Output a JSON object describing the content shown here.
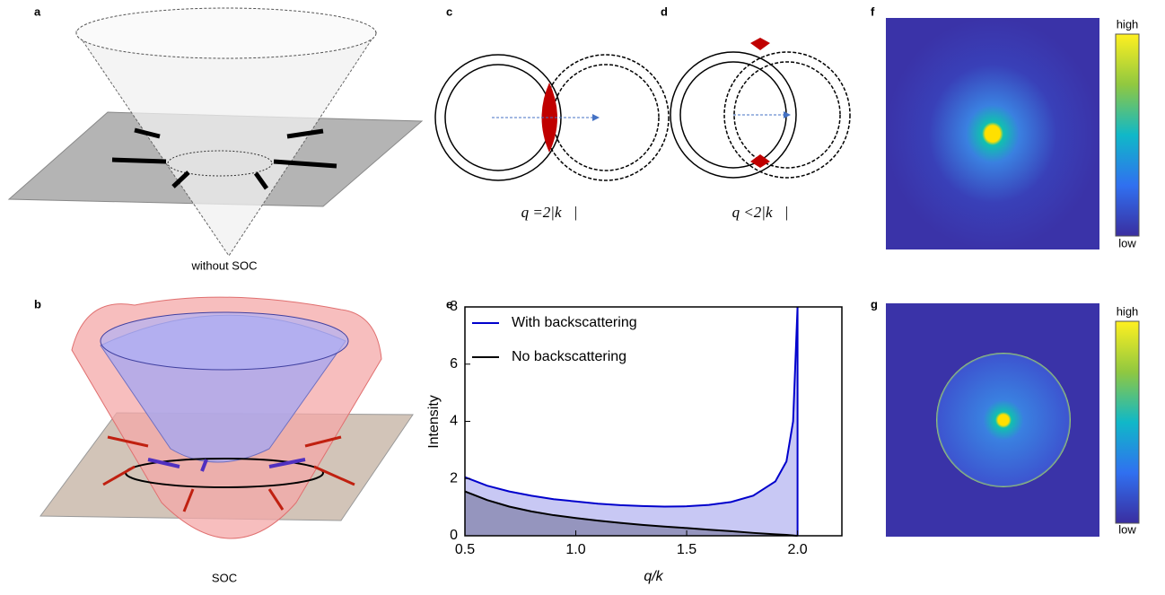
{
  "panel_labels": {
    "a": "a",
    "b": "b",
    "c": "c",
    "d": "d",
    "e": "e",
    "f": "f",
    "g": "g"
  },
  "captions": {
    "a": "without SOC",
    "b": "SOC",
    "c": "q =2|k⃗|",
    "d": "q <2|k⃗|"
  },
  "colorbars": {
    "f": {
      "high": "high",
      "low": "low"
    },
    "g": {
      "high": "high",
      "low": "low"
    }
  },
  "chart_data": {
    "type": "area",
    "x_label": "q/k",
    "y_label": "Intensity",
    "x": [
      0.5,
      0.6,
      0.7,
      0.8,
      0.9,
      1.0,
      1.1,
      1.2,
      1.3,
      1.4,
      1.5,
      1.6,
      1.7,
      1.8,
      1.9,
      1.95,
      1.98,
      1.99,
      2.0
    ],
    "series": [
      {
        "name": "With backscattering",
        "color": "#0000cc",
        "fill": "#c8c8f4",
        "values": [
          2.05,
          1.75,
          1.55,
          1.4,
          1.28,
          1.2,
          1.12,
          1.07,
          1.04,
          1.02,
          1.03,
          1.08,
          1.18,
          1.4,
          1.9,
          2.6,
          4,
          6,
          8
        ]
      },
      {
        "name": "No backscattering",
        "color": "#000000",
        "fill": "#8c8cb4",
        "values": [
          1.55,
          1.25,
          1.02,
          0.85,
          0.72,
          0.62,
          0.53,
          0.45,
          0.38,
          0.32,
          0.27,
          0.21,
          0.16,
          0.1,
          0.05,
          0.03,
          0.01,
          0.005,
          0
        ]
      }
    ],
    "xlim": [
      0.5,
      2.2
    ],
    "ylim": [
      0,
      8
    ],
    "xticks": [
      0.5,
      {
        "value": 1,
        "label": "1.0"
      },
      1.5,
      {
        "value": 2,
        "label": "2.0"
      }
    ],
    "yticks": [
      0,
      2,
      4,
      6,
      8
    ],
    "legend": "upper left"
  }
}
